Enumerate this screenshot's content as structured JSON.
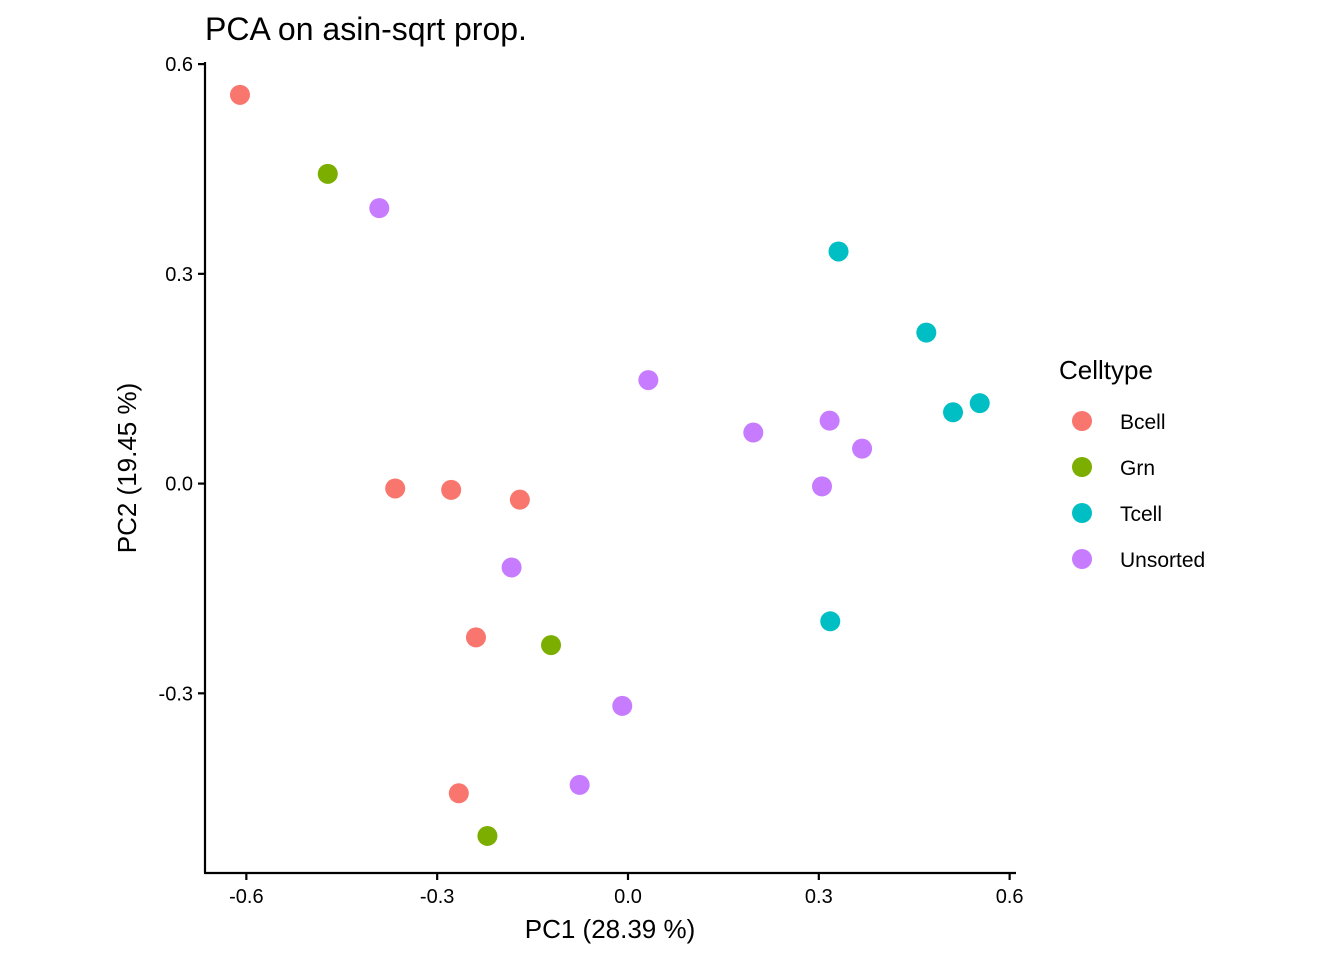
{
  "chart_data": {
    "type": "scatter",
    "title": "PCA on asin-sqrt prop.",
    "xlabel": "PC1 (28.39 %)",
    "ylabel": "PC2 (19.45 %)",
    "xlim": [
      -0.665,
      0.61
    ],
    "ylim": [
      -0.557,
      0.603
    ],
    "xticks": [
      -0.6,
      -0.3,
      0.0,
      0.3,
      0.6
    ],
    "xtick_labels": [
      "-0.6",
      "-0.3",
      "0.0",
      "0.3",
      "0.6"
    ],
    "yticks": [
      -0.3,
      0.0,
      0.3,
      0.6
    ],
    "ytick_labels": [
      "-0.3",
      "0.0",
      "0.3",
      "0.6"
    ],
    "grid": false,
    "legend": {
      "title": "Celltype",
      "position": "right"
    },
    "series": [
      {
        "name": "Bcell",
        "color": "#F8766D",
        "points": [
          {
            "x": -0.61,
            "y": 0.556
          },
          {
            "x": -0.366,
            "y": -0.007
          },
          {
            "x": -0.278,
            "y": -0.009
          },
          {
            "x": -0.17,
            "y": -0.023
          },
          {
            "x": -0.239,
            "y": -0.22
          },
          {
            "x": -0.266,
            "y": -0.443
          }
        ]
      },
      {
        "name": "Grn",
        "color": "#7CAE00",
        "points": [
          {
            "x": -0.472,
            "y": 0.443
          },
          {
            "x": -0.121,
            "y": -0.231
          },
          {
            "x": -0.221,
            "y": -0.504
          }
        ]
      },
      {
        "name": "Tcell",
        "color": "#00BFC4",
        "points": [
          {
            "x": 0.331,
            "y": 0.332
          },
          {
            "x": 0.469,
            "y": 0.216
          },
          {
            "x": 0.553,
            "y": 0.115
          },
          {
            "x": 0.511,
            "y": 0.102
          },
          {
            "x": 0.318,
            "y": -0.197
          }
        ]
      },
      {
        "name": "Unsorted",
        "color": "#C77CFF",
        "points": [
          {
            "x": -0.391,
            "y": 0.394
          },
          {
            "x": 0.032,
            "y": 0.148
          },
          {
            "x": 0.197,
            "y": 0.073
          },
          {
            "x": 0.317,
            "y": 0.09
          },
          {
            "x": 0.368,
            "y": 0.05
          },
          {
            "x": 0.305,
            "y": -0.004
          },
          {
            "x": -0.183,
            "y": -0.12
          },
          {
            "x": -0.009,
            "y": -0.318
          },
          {
            "x": -0.076,
            "y": -0.431
          }
        ]
      }
    ]
  }
}
